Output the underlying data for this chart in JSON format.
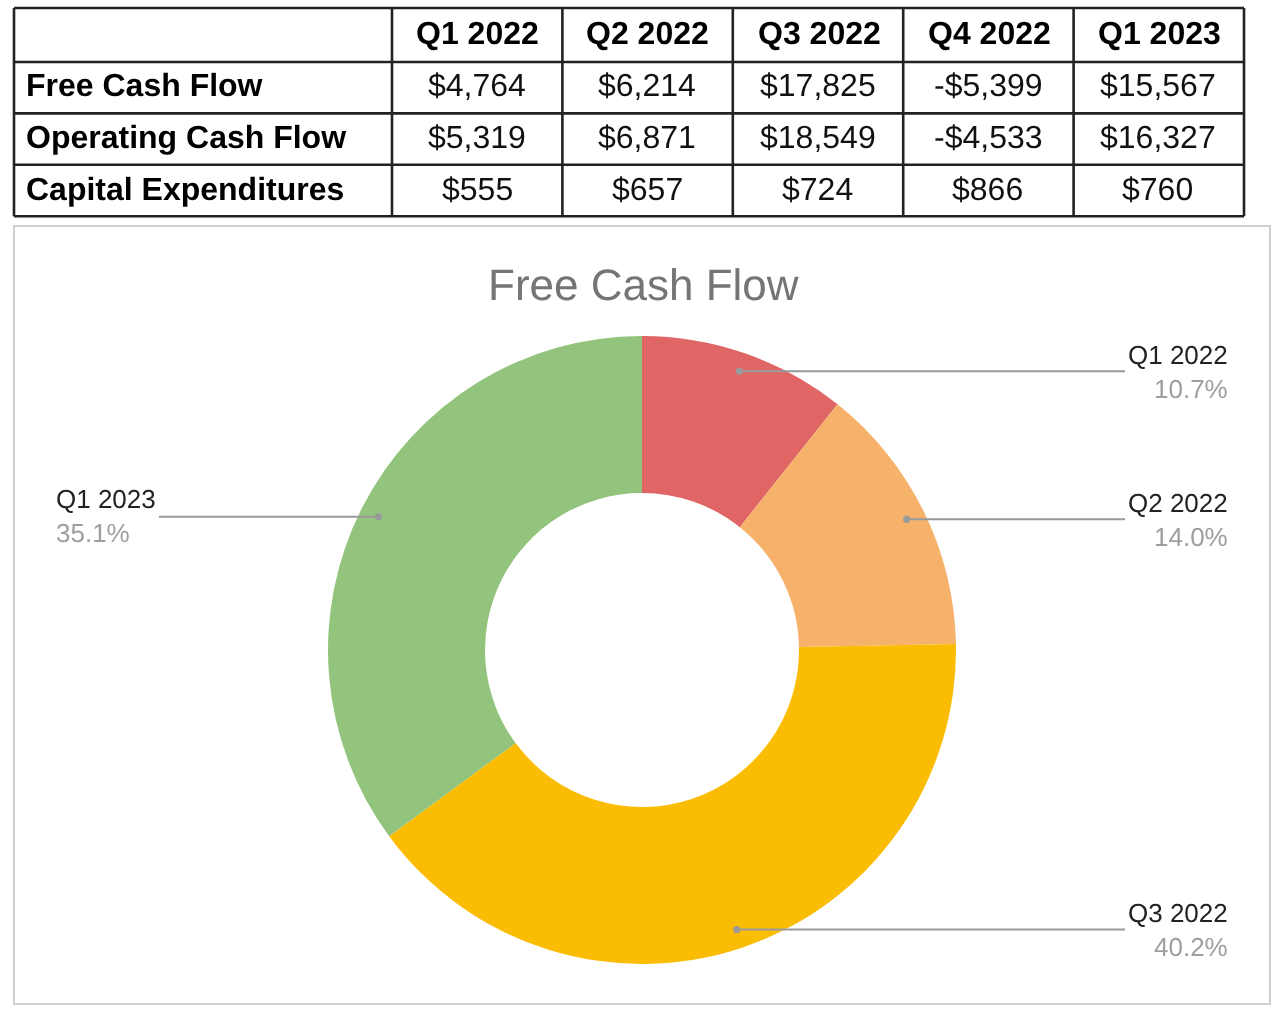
{
  "chart_data": [
    {
      "type": "other",
      "categories": [
        "Q1 2022",
        "Q2 2022",
        "Q3 2022",
        "Q4 2022",
        "Q1 2023"
      ],
      "y_categories": [
        "Free Cash Flow",
        "Operating Cash Flow",
        "Capital Expenditures"
      ],
      "cells": [
        [
          "$4,764",
          "$6,214",
          "$17,825",
          "-$5,399",
          "$15,567"
        ],
        [
          "$5,319",
          "$6,871",
          "$18,549",
          "-$4,533",
          "$16,327"
        ],
        [
          "$555",
          "$657",
          "$724",
          "$866",
          "$760"
        ]
      ]
    },
    {
      "type": "donut",
      "title": "Free Cash Flow",
      "categories": [
        "Q1 2022",
        "Q2 2022",
        "Q3 2022",
        "Q1 2023"
      ],
      "values": [
        10.7,
        14.0,
        40.2,
        35.1
      ],
      "value_labels": [
        "10.7%",
        "14.0%",
        "40.2%",
        "35.1%"
      ],
      "colors": [
        "#e06666",
        "#f6b26b",
        "#fbbc04",
        "#93c47d"
      ]
    }
  ]
}
